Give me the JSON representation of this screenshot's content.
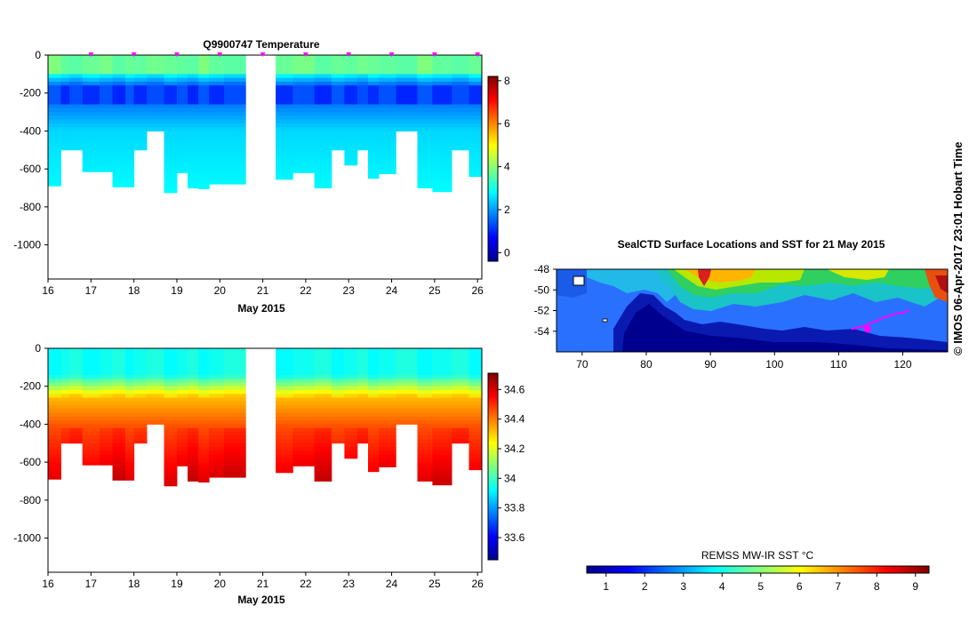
{
  "credit": "© IMOS 06-Apr-2017 23:01 Hobart Time",
  "chart_data": [
    {
      "type": "heatmap",
      "title": "Q9900747  Temperature",
      "xlabel": "May 2015",
      "ylabel": "",
      "x_tick_labels": [
        "16",
        "17",
        "18",
        "19",
        "20",
        "21",
        "22",
        "23",
        "24",
        "25",
        "26"
      ],
      "x_ticks": [
        16,
        17,
        18,
        19,
        20,
        21,
        22,
        23,
        24,
        25,
        26
      ],
      "xlim": [
        16,
        26.1
      ],
      "y_tick_labels": [
        "0",
        "-200",
        "-400",
        "-600",
        "-800",
        "-1000"
      ],
      "y_ticks": [
        0,
        -200,
        -400,
        -600,
        -800,
        -1000
      ],
      "ylim": [
        -1180,
        0
      ],
      "variable": "temperature",
      "colorbar": {
        "min": -0.4,
        "max": 8.2,
        "tick_values": [
          0,
          2,
          4,
          6,
          8
        ],
        "tick_labels": [
          "0",
          "2",
          "4",
          "6",
          "8"
        ]
      },
      "profile_markers": [
        17,
        18,
        19,
        20,
        21,
        22,
        23,
        24,
        25,
        26
      ],
      "gap": [
        20.6,
        21.3
      ],
      "profiles": [
        {
          "t0": 16.0,
          "t1": 16.3,
          "depth": 690
        },
        {
          "t0": 16.3,
          "t1": 16.5,
          "depth": 500
        },
        {
          "t0": 16.5,
          "t1": 16.8,
          "depth": 500
        },
        {
          "t0": 16.8,
          "t1": 17.2,
          "depth": 615
        },
        {
          "t0": 17.2,
          "t1": 17.5,
          "depth": 615
        },
        {
          "t0": 17.5,
          "t1": 17.8,
          "depth": 695
        },
        {
          "t0": 17.8,
          "t1": 18.0,
          "depth": 695
        },
        {
          "t0": 18.0,
          "t1": 18.3,
          "depth": 500
        },
        {
          "t0": 18.3,
          "t1": 18.7,
          "depth": 400
        },
        {
          "t0": 18.7,
          "t1": 19.0,
          "depth": 725
        },
        {
          "t0": 19.0,
          "t1": 19.25,
          "depth": 620
        },
        {
          "t0": 19.25,
          "t1": 19.5,
          "depth": 700
        },
        {
          "t0": 19.5,
          "t1": 19.75,
          "depth": 705
        },
        {
          "t0": 19.75,
          "t1": 20.1,
          "depth": 680
        },
        {
          "t0": 20.1,
          "t1": 20.6,
          "depth": 680
        },
        {
          "t0": 21.3,
          "t1": 21.7,
          "depth": 655
        },
        {
          "t0": 21.7,
          "t1": 22.2,
          "depth": 620
        },
        {
          "t0": 22.2,
          "t1": 22.6,
          "depth": 700
        },
        {
          "t0": 22.6,
          "t1": 22.9,
          "depth": 500
        },
        {
          "t0": 22.9,
          "t1": 23.2,
          "depth": 580
        },
        {
          "t0": 23.2,
          "t1": 23.45,
          "depth": 500
        },
        {
          "t0": 23.45,
          "t1": 23.7,
          "depth": 650
        },
        {
          "t0": 23.7,
          "t1": 24.1,
          "depth": 625
        },
        {
          "t0": 24.1,
          "t1": 24.6,
          "depth": 400
        },
        {
          "t0": 24.6,
          "t1": 24.95,
          "depth": 700
        },
        {
          "t0": 24.95,
          "t1": 25.4,
          "depth": 720
        },
        {
          "t0": 25.4,
          "t1": 25.8,
          "depth": 500
        },
        {
          "t0": 25.8,
          "t1": 26.1,
          "depth": 640
        }
      ]
    },
    {
      "type": "heatmap",
      "title": "",
      "xlabel": "May 2015",
      "ylabel": "",
      "x_tick_labels": [
        "16",
        "17",
        "18",
        "19",
        "20",
        "21",
        "22",
        "23",
        "24",
        "25",
        "26"
      ],
      "x_ticks": [
        16,
        17,
        18,
        19,
        20,
        21,
        22,
        23,
        24,
        25,
        26
      ],
      "xlim": [
        16,
        26.1
      ],
      "y_tick_labels": [
        "0",
        "-200",
        "-400",
        "-600",
        "-800",
        "-1000"
      ],
      "y_ticks": [
        0,
        -200,
        -400,
        -600,
        -800,
        -1000
      ],
      "ylim": [
        -1180,
        0
      ],
      "variable": "salinity",
      "colorbar": {
        "min": 33.45,
        "max": 34.71,
        "tick_values": [
          33.6,
          33.8,
          34,
          34.2,
          34.4,
          34.6
        ],
        "tick_labels": [
          "33.6",
          "33.8",
          "34",
          "34.2",
          "34.4",
          "34.6"
        ]
      },
      "gap": [
        20.6,
        21.3
      ],
      "profiles": "same as temperature section"
    },
    {
      "type": "heatmap",
      "title": "SealCTD Surface Locations and SST for 21 May 2015",
      "xlabel": "",
      "ylabel": "",
      "x_tick_labels": [
        "70",
        "80",
        "90",
        "100",
        "110",
        "120"
      ],
      "x_ticks": [
        70,
        80,
        90,
        100,
        110,
        120
      ],
      "xlim": [
        66,
        127
      ],
      "y_tick_labels": [
        "-48",
        "-50",
        "-52",
        "-54"
      ],
      "y_ticks": [
        -48,
        -50,
        -52,
        -54
      ],
      "ylim": [
        -56,
        -48
      ],
      "colorbar": {
        "label": "REMSS MW-IR SST °C",
        "min": 0.5,
        "max": 9.35,
        "tick_values": [
          1,
          2,
          3,
          4,
          5,
          6,
          7,
          8,
          9
        ],
        "tick_labels": [
          "1",
          "2",
          "3",
          "4",
          "5",
          "6",
          "7",
          "8",
          "9"
        ]
      },
      "seal_track": [
        [
          112,
          -53.8
        ],
        [
          114,
          -53.5
        ],
        [
          115,
          -53.2
        ],
        [
          116,
          -53.0
        ],
        [
          117,
          -52.7
        ],
        [
          118,
          -52.5
        ],
        [
          119,
          -52.3
        ],
        [
          120,
          -52.2
        ],
        [
          121,
          -52.0
        ]
      ],
      "latest_position": [
        114.5,
        -53.8
      ]
    }
  ]
}
